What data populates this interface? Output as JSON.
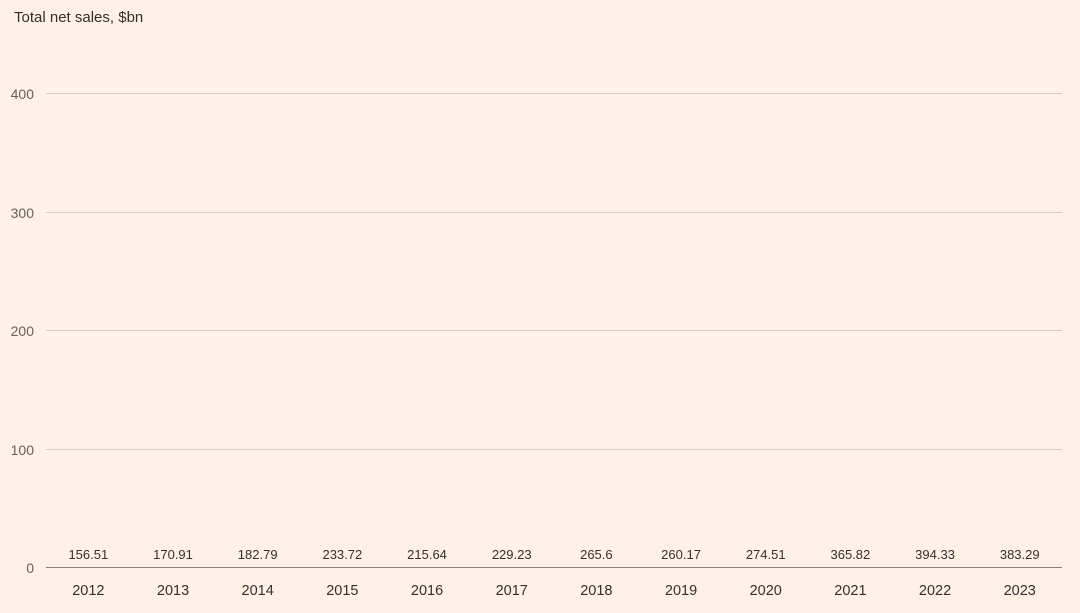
{
  "chart_data": {
    "type": "bar",
    "title": "Total net sales, $bn",
    "categories": [
      "2012",
      "2013",
      "2014",
      "2015",
      "2016",
      "2017",
      "2018",
      "2019",
      "2020",
      "2021",
      "2022",
      "2023"
    ],
    "values": [
      156.51,
      170.91,
      182.79,
      233.72,
      215.64,
      229.23,
      265.6,
      260.17,
      274.51,
      365.82,
      394.33,
      383.29
    ],
    "value_labels": [
      "156.51",
      "170.91",
      "182.79",
      "233.72",
      "215.64",
      "229.23",
      "265.6",
      "260.17",
      "274.51",
      "365.82",
      "394.33",
      "383.29"
    ],
    "xlabel": "",
    "ylabel": "Total net sales, $bn",
    "ylim": [
      0,
      400
    ],
    "yticks": [
      0,
      100,
      200,
      300,
      400
    ],
    "grid": true,
    "legend": "none",
    "colors": {
      "background": "#FFF1E5",
      "bar": "#2E5C8A",
      "gridline": "#D8CCC0",
      "zero_axis": "#8A827B",
      "text": "#33302E",
      "tick_text": "#66605B"
    }
  }
}
